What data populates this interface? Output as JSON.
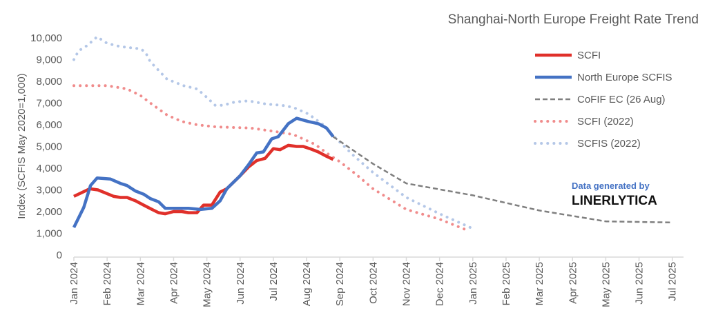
{
  "chart_data": {
    "type": "line",
    "title": "Shanghai-North Europe Freight Rate Trend",
    "ylabel": "Index (SCFIS May 2020=1,000)",
    "xlabel": "",
    "ylim": [
      0,
      10000
    ],
    "yticks": [
      "0",
      "1,000",
      "2,000",
      "3,000",
      "4,000",
      "5,000",
      "6,000",
      "7,000",
      "8,000",
      "9,000",
      "10,000"
    ],
    "ytick_values": [
      0,
      1000,
      2000,
      3000,
      4000,
      5000,
      6000,
      7000,
      8000,
      9000,
      10000
    ],
    "x_unit": "months since Jan 2024",
    "xticks": [
      "Jan 2024",
      "Feb 2024",
      "Mar 2024",
      "Apr 2024",
      "May 2024",
      "Jun 2024",
      "Jul 2024",
      "Aug 2024",
      "Sep 2024",
      "Oct 2024",
      "Nov 2024",
      "Dec 2024",
      "Jan 2025",
      "Feb 2025",
      "Mar 2025",
      "Apr 2025",
      "May 2025",
      "Jun 2025",
      "Jul 2025"
    ],
    "grid": false,
    "legend_position": "right",
    "series": [
      {
        "name": "SCFI",
        "color": "#e0302a",
        "style": "solid",
        "points": [
          [
            0,
            2700
          ],
          [
            0.48,
            3050
          ],
          [
            0.72,
            3000
          ],
          [
            0.96,
            2850
          ],
          [
            1.2,
            2700
          ],
          [
            1.4,
            2650
          ],
          [
            1.6,
            2650
          ],
          [
            1.85,
            2500
          ],
          [
            2.1,
            2300
          ],
          [
            2.35,
            2100
          ],
          [
            2.55,
            1950
          ],
          [
            2.75,
            1900
          ],
          [
            3.0,
            2000
          ],
          [
            3.25,
            2000
          ],
          [
            3.45,
            1950
          ],
          [
            3.7,
            1950
          ],
          [
            3.9,
            2300
          ],
          [
            4.15,
            2300
          ],
          [
            4.4,
            2900
          ],
          [
            4.6,
            3050
          ],
          [
            5.0,
            3650
          ],
          [
            5.25,
            4050
          ],
          [
            5.5,
            4350
          ],
          [
            5.75,
            4450
          ],
          [
            6.0,
            4900
          ],
          [
            6.2,
            4850
          ],
          [
            6.45,
            5050
          ],
          [
            6.7,
            5000
          ],
          [
            6.9,
            5000
          ],
          [
            7.1,
            4900
          ],
          [
            7.35,
            4750
          ],
          [
            7.6,
            4550
          ],
          [
            7.8,
            4400
          ]
        ]
      },
      {
        "name": "North Europe SCFIS",
        "color": "#4472c4",
        "style": "solid",
        "points": [
          [
            0,
            1270
          ],
          [
            0.3,
            2200
          ],
          [
            0.5,
            3200
          ],
          [
            0.7,
            3550
          ],
          [
            1.1,
            3500
          ],
          [
            1.4,
            3300
          ],
          [
            1.6,
            3200
          ],
          [
            1.85,
            2950
          ],
          [
            2.1,
            2800
          ],
          [
            2.3,
            2600
          ],
          [
            2.55,
            2450
          ],
          [
            2.75,
            2150
          ],
          [
            3.45,
            2150
          ],
          [
            3.8,
            2100
          ],
          [
            4.15,
            2150
          ],
          [
            4.4,
            2500
          ],
          [
            4.6,
            3050
          ],
          [
            5.0,
            3650
          ],
          [
            5.25,
            4150
          ],
          [
            5.5,
            4700
          ],
          [
            5.7,
            4750
          ],
          [
            5.95,
            5350
          ],
          [
            6.15,
            5450
          ],
          [
            6.45,
            6050
          ],
          [
            6.7,
            6300
          ],
          [
            7.05,
            6150
          ],
          [
            7.35,
            6050
          ],
          [
            7.6,
            5850
          ],
          [
            7.8,
            5450
          ]
        ]
      },
      {
        "name": "CoFIF EC (26 Aug)",
        "color": "#7f7f7f",
        "style": "dashed",
        "points": [
          [
            7.8,
            5450
          ],
          [
            9.0,
            4200
          ],
          [
            10.0,
            3300
          ],
          [
            12.0,
            2750
          ],
          [
            14.0,
            2050
          ],
          [
            16.0,
            1550
          ],
          [
            18.0,
            1500
          ]
        ]
      },
      {
        "name": "SCFI (2022)",
        "color": "#f08c8c",
        "style": "dotted",
        "points": [
          [
            0,
            7800
          ],
          [
            1.0,
            7800
          ],
          [
            1.6,
            7650
          ],
          [
            2.0,
            7350
          ],
          [
            2.3,
            7000
          ],
          [
            2.8,
            6450
          ],
          [
            3.25,
            6150
          ],
          [
            3.7,
            6000
          ],
          [
            4.3,
            5900
          ],
          [
            5.3,
            5850
          ],
          [
            6.0,
            5700
          ],
          [
            6.6,
            5550
          ],
          [
            7.25,
            5100
          ],
          [
            7.65,
            4650
          ],
          [
            8.0,
            4300
          ],
          [
            8.5,
            3700
          ],
          [
            9.0,
            3050
          ],
          [
            10.0,
            2100
          ],
          [
            11.0,
            1650
          ],
          [
            11.9,
            1100
          ]
        ]
      },
      {
        "name": "SCFIS (2022)",
        "color": "#b4c7e7",
        "style": "dotted",
        "points": [
          [
            0,
            9000
          ],
          [
            0.14,
            9400
          ],
          [
            0.4,
            9650
          ],
          [
            0.7,
            10050
          ],
          [
            1.0,
            9750
          ],
          [
            1.4,
            9600
          ],
          [
            2.0,
            9500
          ],
          [
            2.15,
            9350
          ],
          [
            2.3,
            8900
          ],
          [
            2.8,
            8100
          ],
          [
            3.3,
            7800
          ],
          [
            3.7,
            7650
          ],
          [
            3.9,
            7400
          ],
          [
            4.25,
            6900
          ],
          [
            4.5,
            6900
          ],
          [
            4.85,
            7050
          ],
          [
            5.25,
            7100
          ],
          [
            5.8,
            6950
          ],
          [
            6.25,
            6900
          ],
          [
            6.6,
            6800
          ],
          [
            7.05,
            6500
          ],
          [
            7.5,
            6000
          ],
          [
            7.8,
            5500
          ],
          [
            8.4,
            4600
          ],
          [
            9.0,
            3800
          ],
          [
            10.0,
            2650
          ],
          [
            11.0,
            1900
          ],
          [
            11.95,
            1250
          ]
        ]
      }
    ],
    "annotations": {
      "credit_line": "Data generated by",
      "credit_brand": "LINERLYTICA",
      "credit_line_color": "#4472c4"
    }
  }
}
